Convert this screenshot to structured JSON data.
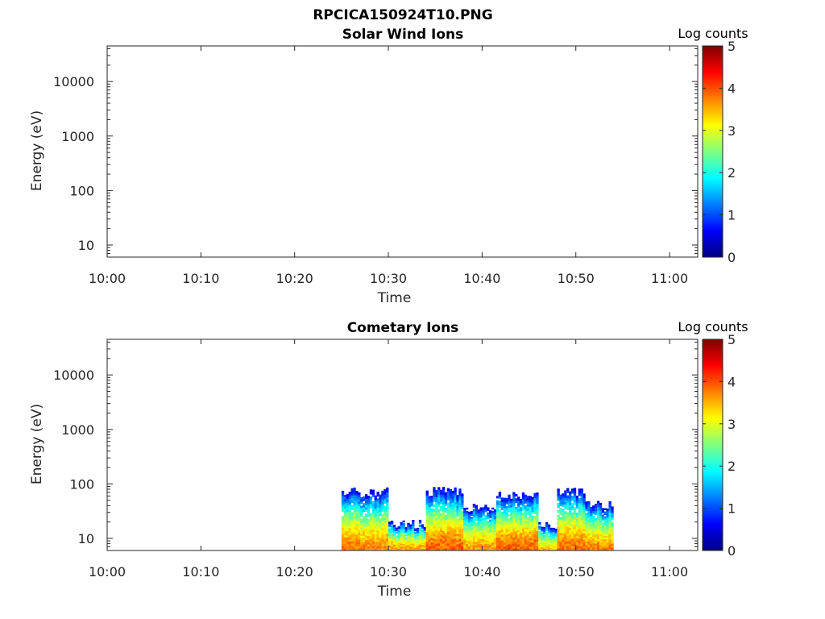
{
  "figure_title": "RPCICA150924T10.PNG",
  "chart_data": [
    {
      "type": "heatmap",
      "title": "Solar Wind Ions",
      "xlabel": "Time",
      "ylabel": "Energy (eV)",
      "x_range": [
        "10:00",
        "11:03"
      ],
      "x_ticks": [
        "10:00",
        "10:10",
        "10:20",
        "10:30",
        "10:40",
        "10:50",
        "11:00"
      ],
      "y_scale": "log",
      "y_range": [
        6,
        45000
      ],
      "y_ticks": [
        "10",
        "100",
        "1000",
        "10000"
      ],
      "colorbar": {
        "label": "Log counts",
        "range": [
          0,
          5
        ],
        "ticks": [
          "0",
          "1",
          "2",
          "3",
          "4",
          "5"
        ],
        "colormap": "jet"
      },
      "grid": false,
      "data": []
    },
    {
      "type": "heatmap",
      "title": "Cometary Ions",
      "xlabel": "Time",
      "ylabel": "Energy (eV)",
      "x_range": [
        "10:00",
        "11:03"
      ],
      "x_ticks": [
        "10:00",
        "10:10",
        "10:20",
        "10:30",
        "10:40",
        "10:50",
        "11:00"
      ],
      "y_scale": "log",
      "y_range": [
        6,
        45000
      ],
      "y_ticks": [
        "10",
        "100",
        "1000",
        "10000"
      ],
      "colorbar": {
        "label": "Log counts",
        "range": [
          0,
          5
        ],
        "ticks": [
          "0",
          "1",
          "2",
          "3",
          "4",
          "5"
        ],
        "colormap": "jet"
      },
      "grid": false,
      "data": [
        {
          "start": "10:25",
          "end": "10:27",
          "upper_energy": 80,
          "peak_log_counts": 3.8
        },
        {
          "start": "10:27",
          "end": "10:30",
          "upper_energy": 80,
          "peak_log_counts": 3.7
        },
        {
          "start": "10:30",
          "end": "10:34",
          "upper_energy": 20,
          "peak_log_counts": 3.6
        },
        {
          "start": "10:34",
          "end": "10:38",
          "upper_energy": 80,
          "peak_log_counts": 3.9
        },
        {
          "start": "10:38",
          "end": "10:41.5",
          "upper_energy": 40,
          "peak_log_counts": 3.6
        },
        {
          "start": "10:41.5",
          "end": "10:46",
          "upper_energy": 70,
          "peak_log_counts": 3.9
        },
        {
          "start": "10:46",
          "end": "10:48",
          "upper_energy": 20,
          "peak_log_counts": 3.4
        },
        {
          "start": "10:48",
          "end": "10:51",
          "upper_energy": 80,
          "peak_log_counts": 3.8
        },
        {
          "start": "10:51",
          "end": "10:54",
          "upper_energy": 45,
          "peak_log_counts": 3.7
        }
      ]
    }
  ]
}
